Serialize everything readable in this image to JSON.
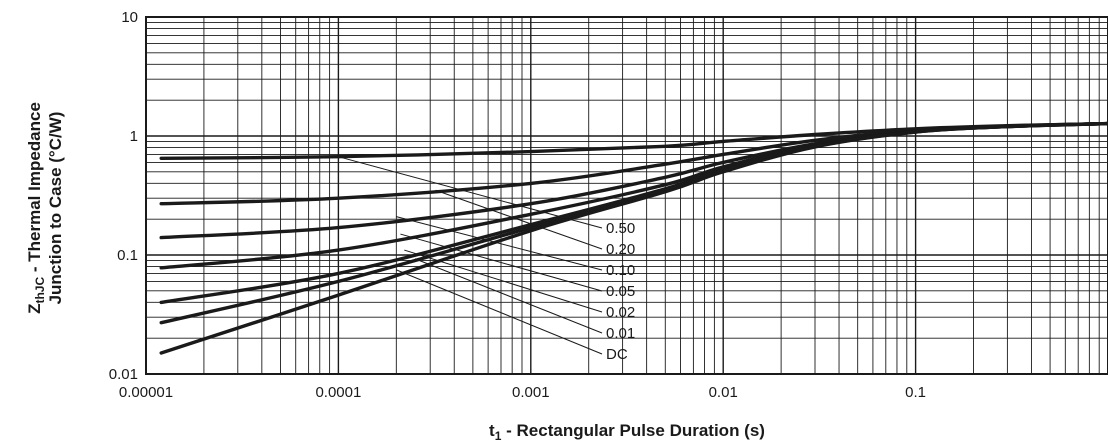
{
  "chart_data": {
    "type": "line",
    "x_scale": "log",
    "y_scale": "log",
    "xlim": [
      1e-05,
      1
    ],
    "ylim": [
      0.01,
      10
    ],
    "grid": true,
    "x_ticks": [
      "0.00001",
      "0.0001",
      "0.001",
      "0.01",
      "0.1"
    ],
    "y_ticks": [
      "10",
      "1",
      "0.1",
      "0.01"
    ],
    "xlabel": {
      "main": "t",
      "sub": "1",
      "rest": " - Rectangular Pulse Duration (s)"
    },
    "ylabel": {
      "line1_main": "Z",
      "line1_sub": "thJC",
      "line1_rest": " - Thermal Impedance",
      "line2": "Junction to Case (°C/W)"
    },
    "series": [
      {
        "name": "0.50",
        "x": [
          1.2e-05,
          0.0001,
          0.001,
          0.005,
          0.01,
          0.03,
          0.1,
          0.3,
          1
        ],
        "y": [
          0.65,
          0.67,
          0.74,
          0.82,
          0.9,
          1.03,
          1.15,
          1.22,
          1.27
        ]
      },
      {
        "name": "0.20",
        "x": [
          1.2e-05,
          0.0001,
          0.001,
          0.005,
          0.01,
          0.03,
          0.1,
          0.3,
          1
        ],
        "y": [
          0.27,
          0.3,
          0.4,
          0.58,
          0.7,
          0.92,
          1.12,
          1.21,
          1.27
        ]
      },
      {
        "name": "0.10",
        "x": [
          1.2e-05,
          0.0001,
          0.001,
          0.005,
          0.01,
          0.03,
          0.1,
          0.3,
          1
        ],
        "y": [
          0.14,
          0.17,
          0.27,
          0.45,
          0.6,
          0.86,
          1.1,
          1.21,
          1.27
        ]
      },
      {
        "name": "0.05",
        "x": [
          1.2e-05,
          0.0001,
          0.001,
          0.005,
          0.01,
          0.03,
          0.1,
          0.3,
          1
        ],
        "y": [
          0.078,
          0.11,
          0.22,
          0.39,
          0.55,
          0.84,
          1.09,
          1.2,
          1.27
        ]
      },
      {
        "name": "0.02",
        "x": [
          1.2e-05,
          0.0001,
          0.001,
          0.005,
          0.01,
          0.03,
          0.1,
          0.3,
          1
        ],
        "y": [
          0.04,
          0.07,
          0.18,
          0.36,
          0.53,
          0.83,
          1.09,
          1.2,
          1.27
        ]
      },
      {
        "name": "0.01",
        "x": [
          1.2e-05,
          0.0001,
          0.001,
          0.005,
          0.01,
          0.03,
          0.1,
          0.3,
          1
        ],
        "y": [
          0.027,
          0.06,
          0.17,
          0.35,
          0.52,
          0.82,
          1.08,
          1.2,
          1.27
        ]
      },
      {
        "name": "DC",
        "x": [
          1.2e-05,
          0.0001,
          0.001,
          0.005,
          0.01,
          0.03,
          0.1,
          0.3,
          1
        ],
        "y": [
          0.015,
          0.046,
          0.16,
          0.34,
          0.5,
          0.81,
          1.08,
          1.2,
          1.27
        ]
      }
    ],
    "label_leaders": [
      {
        "name": "0.50",
        "from": [
          0.0001,
          0.67
        ]
      },
      {
        "name": "0.20",
        "from": [
          0.00032,
          0.35
        ]
      },
      {
        "name": "0.10",
        "from": [
          0.0002,
          0.21
        ]
      },
      {
        "name": "0.05",
        "from": [
          0.00021,
          0.15
        ]
      },
      {
        "name": "0.02",
        "from": [
          0.00022,
          0.11
        ]
      },
      {
        "name": "0.01",
        "from": [
          0.00025,
          0.093
        ]
      },
      {
        "name": "DC",
        "from": [
          0.0002,
          0.075
        ]
      }
    ],
    "line_color": "#1a1a1a",
    "grid_color": "#1a1a1a"
  }
}
